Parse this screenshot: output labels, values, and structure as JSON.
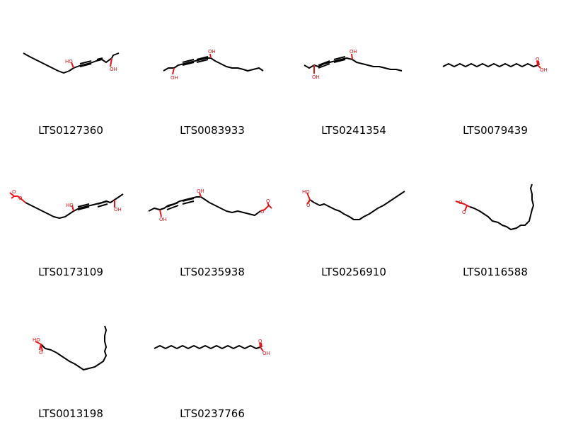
{
  "molecules": [
    {
      "id": "LTS0127360",
      "atom_labels": [
        "HO",
        "OH"
      ]
    },
    {
      "id": "LTS0083933",
      "atom_labels": [
        "OH",
        "OH"
      ]
    },
    {
      "id": "LTS0241354",
      "atom_labels": [
        "OH",
        "OH"
      ]
    },
    {
      "id": "LTS0079439",
      "atom_labels": [
        "O",
        "OH"
      ]
    },
    {
      "id": "LTS0173109",
      "atom_labels": [
        "O",
        "O",
        "HO",
        "OH"
      ]
    },
    {
      "id": "LTS0235938",
      "atom_labels": [
        "OH",
        "OH",
        "O",
        "O"
      ]
    },
    {
      "id": "LTS0256910",
      "atom_labels": [
        "HO",
        "O"
      ]
    },
    {
      "id": "LTS0116588",
      "atom_labels": [
        "O",
        "O"
      ]
    },
    {
      "id": "LTS0013198",
      "atom_labels": [
        "HO",
        "O"
      ]
    },
    {
      "id": "LTS0237766",
      "atom_labels": [
        "O",
        "OH"
      ]
    }
  ],
  "colors": {
    "bond": "#000000",
    "heteroatom": "#e8141d"
  }
}
